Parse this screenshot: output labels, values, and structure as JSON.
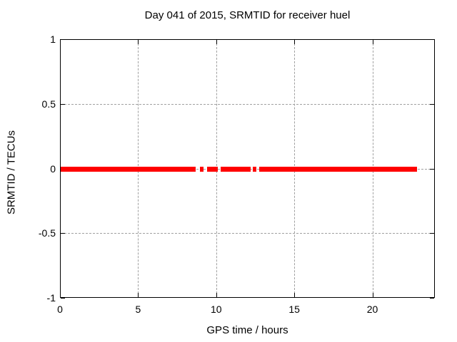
{
  "chart_data": {
    "type": "line",
    "title": "Day 041 of 2015, SRMTID for receiver huel",
    "xlabel": "GPS time / hours",
    "ylabel": "SRMTID / TECUs",
    "xlim": [
      0,
      24
    ],
    "ylim": [
      -1,
      1
    ],
    "xticks": [
      0,
      5,
      10,
      15,
      20
    ],
    "xtick_labels": [
      "0",
      "5",
      "10",
      "15",
      "20"
    ],
    "yticks": [
      1,
      0.5,
      0,
      -0.5,
      -1
    ],
    "ytick_labels": [
      "1",
      "0.5",
      "0",
      "-0.5",
      "-1"
    ],
    "grid": true,
    "legend": "none",
    "series": [
      {
        "name": "SRMTID",
        "color": "#ff0000",
        "y_value": 0,
        "segments_hours": [
          [
            0.0,
            8.64
          ],
          [
            8.91,
            9.14
          ],
          [
            9.37,
            10.06
          ],
          [
            10.24,
            12.16
          ],
          [
            12.3,
            12.53
          ],
          [
            12.71,
            22.81
          ]
        ]
      }
    ]
  },
  "colors": {
    "background": "#ffffff",
    "border": "#000000",
    "grid": "#a0a0a0",
    "text": "#000000",
    "series_red": "#ff0000"
  }
}
